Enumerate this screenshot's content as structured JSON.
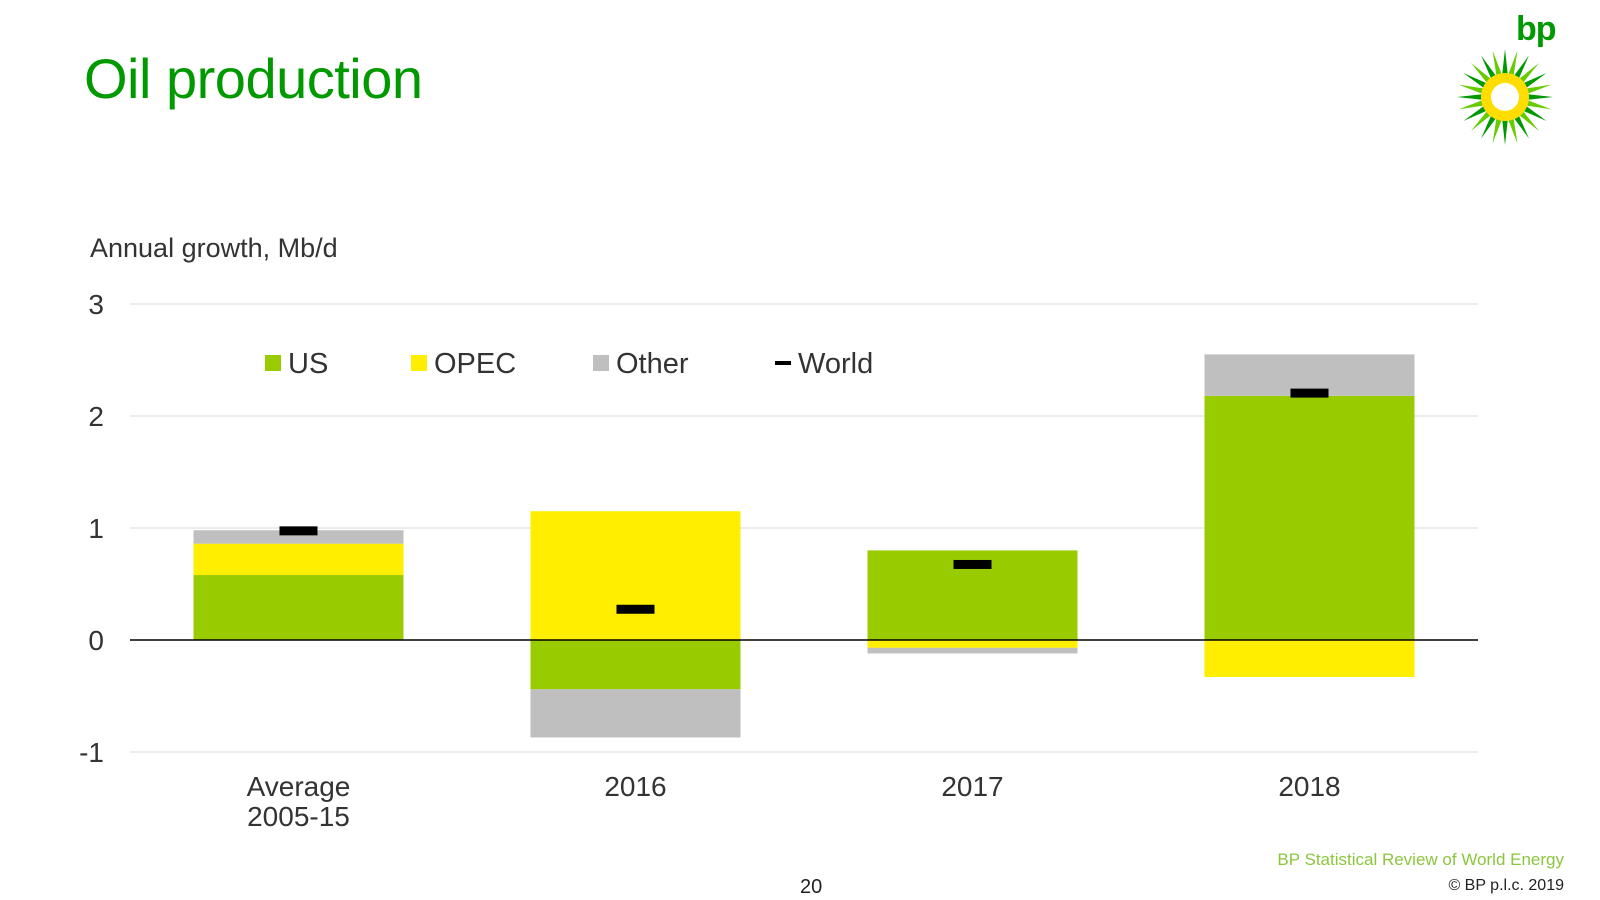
{
  "slide": {
    "title": "Oil production",
    "logo_text": "bp",
    "source": "BP Statistical Review of World Energy",
    "copyright": "© BP p.l.c. 2019",
    "page_number": "20"
  },
  "colors": {
    "title": "#009900",
    "US": "#99cc00",
    "OPEC": "#ffee00",
    "Other": "#bfbfbf",
    "World": "#000000"
  },
  "chart_data": {
    "type": "bar",
    "stacked": true,
    "title": "",
    "ylabel": "Annual growth, Mb/d",
    "xlabel": "",
    "categories": [
      [
        "Average",
        "2005-15"
      ],
      [
        "2016"
      ],
      [
        "2017"
      ],
      [
        "2018"
      ]
    ],
    "ylim": [
      -1,
      3
    ],
    "yticks": [
      3,
      2,
      1,
      0,
      -1
    ],
    "grid": true,
    "legend_position": "top-left",
    "series": [
      {
        "name": "US",
        "type": "bar",
        "values": [
          0.58,
          -0.44,
          0.8,
          2.18
        ]
      },
      {
        "name": "OPEC",
        "type": "bar",
        "values": [
          0.28,
          1.15,
          -0.07,
          -0.33
        ]
      },
      {
        "name": "Other",
        "type": "bar",
        "values": [
          0.12,
          -0.43,
          -0.05,
          0.37
        ]
      },
      {
        "name": "World",
        "type": "marker",
        "values": [
          0.97,
          0.27,
          0.67,
          2.2
        ]
      }
    ]
  }
}
